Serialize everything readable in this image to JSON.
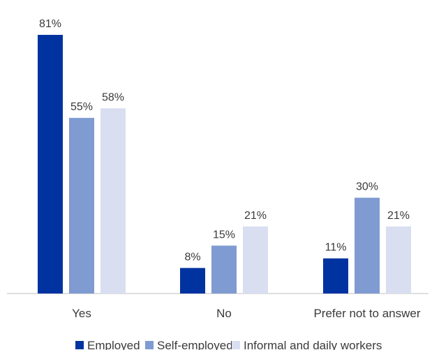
{
  "chart_data": {
    "type": "bar",
    "title": "",
    "xlabel": "",
    "ylabel": "",
    "categories": [
      "Yes",
      "No",
      "Prefer not to answer"
    ],
    "series": [
      {
        "name": "Employed",
        "values": [
          81,
          8,
          11
        ],
        "labels": [
          "81%",
          "8%",
          "11%"
        ],
        "color": "#0033a0"
      },
      {
        "name": "Self-employed",
        "values": [
          55,
          15,
          30
        ],
        "labels": [
          "55%",
          "15%",
          "30%"
        ],
        "color": "#7f9bd1"
      },
      {
        "name": "Informal and daily workers",
        "values": [
          58,
          21,
          21
        ],
        "labels": [
          "58%",
          "21%",
          "21%"
        ],
        "color": "#d9dff1"
      }
    ],
    "ylim": [
      0,
      100
    ],
    "value_format": "percent",
    "grid": false,
    "y_axis_visible": false,
    "legend_position": "bottom"
  }
}
